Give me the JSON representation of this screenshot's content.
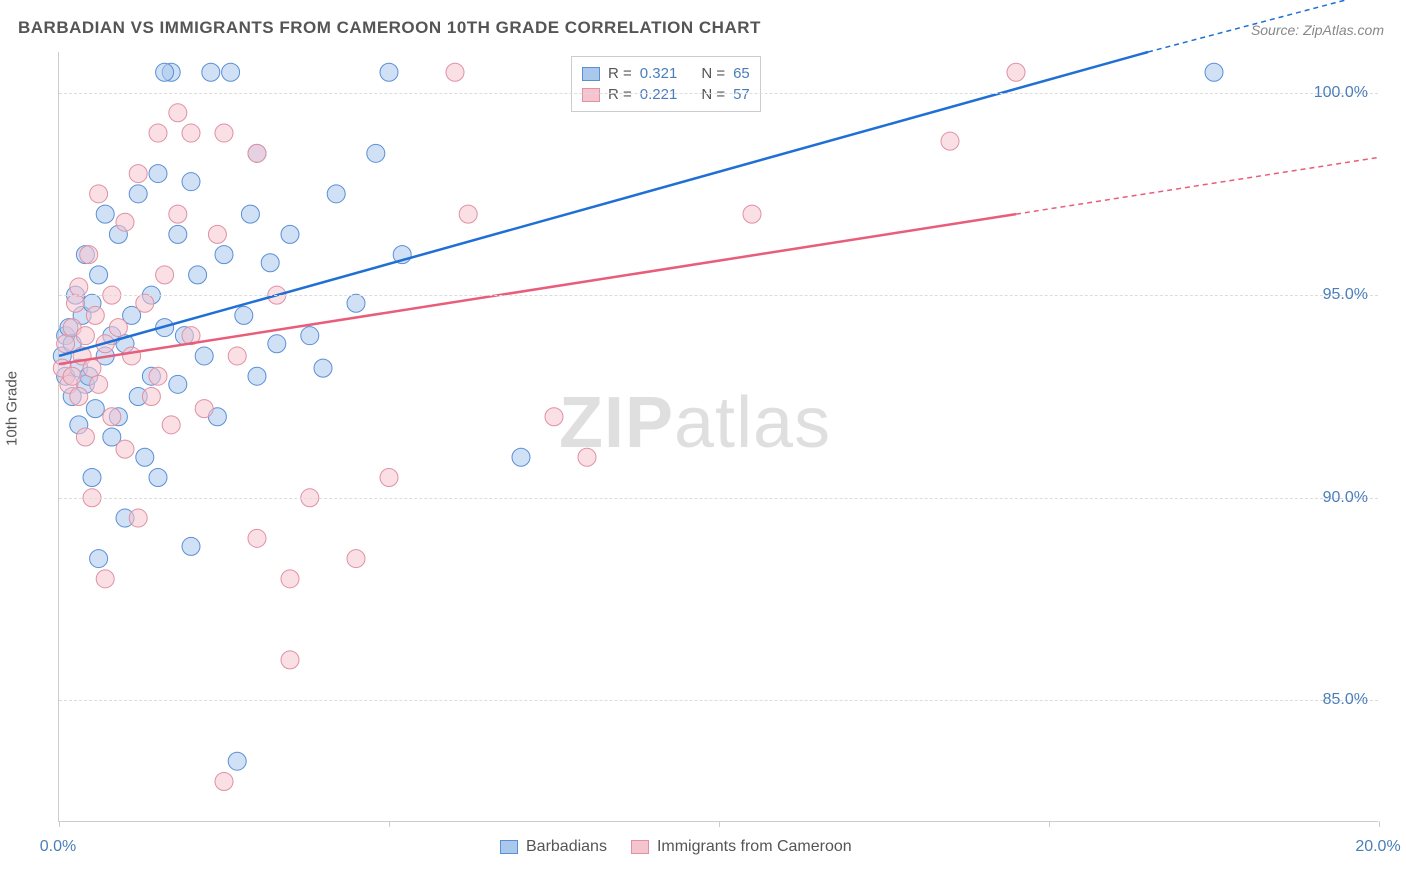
{
  "title": "BARBADIAN VS IMMIGRANTS FROM CAMEROON 10TH GRADE CORRELATION CHART",
  "source": "Source: ZipAtlas.com",
  "y_axis_label": "10th Grade",
  "watermark_bold": "ZIP",
  "watermark_light": "atlas",
  "chart": {
    "type": "scatter-with-regression",
    "background_color": "#ffffff",
    "grid_color": "#dddddd",
    "axis_color": "#cccccc",
    "xlim": [
      0,
      20
    ],
    "ylim": [
      82,
      101
    ],
    "x_ticks": [
      0,
      5,
      10,
      15,
      20
    ],
    "x_tick_labels": [
      "0.0%",
      "",
      "",
      "",
      "20.0%"
    ],
    "y_ticks": [
      85,
      90,
      95,
      100
    ],
    "y_tick_labels": [
      "85.0%",
      "90.0%",
      "95.0%",
      "100.0%"
    ],
    "marker_radius": 9,
    "marker_opacity": 0.55,
    "line_width": 2.5,
    "series": [
      {
        "name": "Barbadians",
        "fill_color": "#a9c8ec",
        "stroke_color": "#5a8fd6",
        "line_color": "#1f6fd4",
        "R": "0.321",
        "N": "65",
        "reg_x1": 0,
        "reg_y1": 93.5,
        "reg_x2": 16.5,
        "reg_y2": 101.0,
        "dash_x1": 16.5,
        "dash_y1": 101.0,
        "dash_x2": 20,
        "dash_y2": 102.5,
        "points": [
          [
            0.05,
            93.5
          ],
          [
            0.1,
            94.0
          ],
          [
            0.1,
            93.0
          ],
          [
            0.15,
            94.2
          ],
          [
            0.2,
            93.8
          ],
          [
            0.2,
            92.5
          ],
          [
            0.25,
            95.0
          ],
          [
            0.3,
            93.2
          ],
          [
            0.3,
            91.8
          ],
          [
            0.35,
            94.5
          ],
          [
            0.4,
            92.8
          ],
          [
            0.4,
            96.0
          ],
          [
            0.45,
            93.0
          ],
          [
            0.5,
            90.5
          ],
          [
            0.5,
            94.8
          ],
          [
            0.55,
            92.2
          ],
          [
            0.6,
            95.5
          ],
          [
            0.6,
            88.5
          ],
          [
            0.7,
            93.5
          ],
          [
            0.7,
            97.0
          ],
          [
            0.8,
            91.5
          ],
          [
            0.8,
            94.0
          ],
          [
            0.9,
            92.0
          ],
          [
            0.9,
            96.5
          ],
          [
            1.0,
            93.8
          ],
          [
            1.0,
            89.5
          ],
          [
            1.1,
            94.5
          ],
          [
            1.2,
            92.5
          ],
          [
            1.2,
            97.5
          ],
          [
            1.3,
            91.0
          ],
          [
            1.4,
            95.0
          ],
          [
            1.4,
            93.0
          ],
          [
            1.5,
            98.0
          ],
          [
            1.5,
            90.5
          ],
          [
            1.6,
            94.2
          ],
          [
            1.7,
            100.5
          ],
          [
            1.8,
            92.8
          ],
          [
            1.8,
            96.5
          ],
          [
            1.9,
            94.0
          ],
          [
            2.0,
            97.8
          ],
          [
            2.0,
            88.8
          ],
          [
            2.1,
            95.5
          ],
          [
            2.2,
            93.5
          ],
          [
            2.3,
            100.5
          ],
          [
            2.4,
            92.0
          ],
          [
            2.5,
            96.0
          ],
          [
            2.6,
            100.5
          ],
          [
            2.7,
            83.5
          ],
          [
            2.8,
            94.5
          ],
          [
            2.9,
            97.0
          ],
          [
            3.0,
            93.0
          ],
          [
            3.0,
            98.5
          ],
          [
            3.2,
            95.8
          ],
          [
            3.3,
            93.8
          ],
          [
            3.5,
            96.5
          ],
          [
            3.8,
            94.0
          ],
          [
            4.0,
            93.2
          ],
          [
            4.2,
            97.5
          ],
          [
            4.5,
            94.8
          ],
          [
            4.8,
            98.5
          ],
          [
            5.0,
            100.5
          ],
          [
            5.2,
            96.0
          ],
          [
            7.0,
            91.0
          ],
          [
            17.5,
            100.5
          ],
          [
            1.6,
            100.5
          ]
        ]
      },
      {
        "name": "Immigrants from Cameroon",
        "fill_color": "#f5c4cf",
        "stroke_color": "#e091a3",
        "line_color": "#e85d7a",
        "R": "0.221",
        "N": "57",
        "reg_x1": 0,
        "reg_y1": 93.3,
        "reg_x2": 14.5,
        "reg_y2": 97.0,
        "dash_x1": 14.5,
        "dash_y1": 97.0,
        "dash_x2": 20,
        "dash_y2": 98.4,
        "points": [
          [
            0.05,
            93.2
          ],
          [
            0.1,
            93.8
          ],
          [
            0.15,
            92.8
          ],
          [
            0.2,
            94.2
          ],
          [
            0.2,
            93.0
          ],
          [
            0.25,
            94.8
          ],
          [
            0.3,
            92.5
          ],
          [
            0.3,
            95.2
          ],
          [
            0.35,
            93.5
          ],
          [
            0.4,
            91.5
          ],
          [
            0.4,
            94.0
          ],
          [
            0.45,
            96.0
          ],
          [
            0.5,
            93.2
          ],
          [
            0.5,
            90.0
          ],
          [
            0.55,
            94.5
          ],
          [
            0.6,
            92.8
          ],
          [
            0.6,
            97.5
          ],
          [
            0.7,
            93.8
          ],
          [
            0.7,
            88.0
          ],
          [
            0.8,
            95.0
          ],
          [
            0.8,
            92.0
          ],
          [
            0.9,
            94.2
          ],
          [
            1.0,
            96.8
          ],
          [
            1.0,
            91.2
          ],
          [
            1.1,
            93.5
          ],
          [
            1.2,
            98.0
          ],
          [
            1.2,
            89.5
          ],
          [
            1.3,
            94.8
          ],
          [
            1.4,
            92.5
          ],
          [
            1.5,
            99.0
          ],
          [
            1.5,
            93.0
          ],
          [
            1.6,
            95.5
          ],
          [
            1.7,
            91.8
          ],
          [
            1.8,
            97.0
          ],
          [
            1.8,
            99.5
          ],
          [
            2.0,
            94.0
          ],
          [
            2.0,
            99.0
          ],
          [
            2.2,
            92.2
          ],
          [
            2.4,
            96.5
          ],
          [
            2.5,
            99.0
          ],
          [
            2.5,
            83.0
          ],
          [
            2.7,
            93.5
          ],
          [
            3.0,
            98.5
          ],
          [
            3.0,
            89.0
          ],
          [
            3.3,
            95.0
          ],
          [
            3.5,
            86.0
          ],
          [
            3.5,
            88.0
          ],
          [
            3.8,
            90.0
          ],
          [
            4.5,
            88.5
          ],
          [
            5.0,
            90.5
          ],
          [
            6.0,
            100.5
          ],
          [
            6.2,
            97.0
          ],
          [
            7.5,
            92.0
          ],
          [
            8.0,
            91.0
          ],
          [
            10.5,
            97.0
          ],
          [
            13.5,
            98.8
          ],
          [
            14.5,
            100.5
          ]
        ]
      }
    ]
  },
  "legend_top": {
    "R_label": "R =",
    "N_label": "N ="
  },
  "legend_bottom": {
    "items": [
      "Barbadians",
      "Immigrants from Cameroon"
    ]
  }
}
